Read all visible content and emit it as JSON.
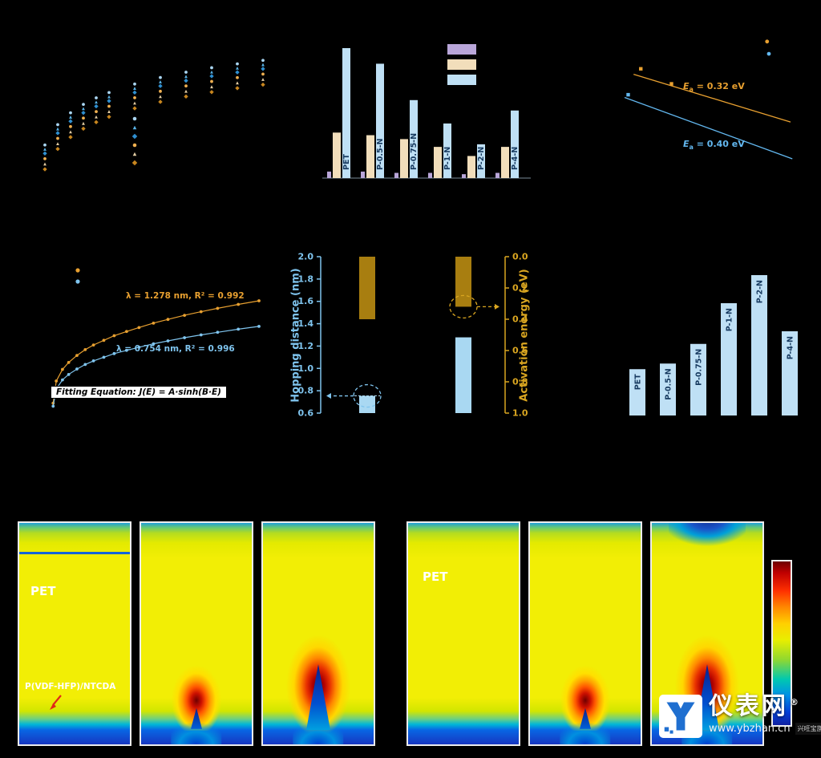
{
  "page": {
    "background": "#000000"
  },
  "chart_data": [
    {
      "id": "je-family-curves",
      "type": "scatter",
      "title": "",
      "x": [
        1,
        2,
        3,
        4,
        5,
        6,
        8,
        10,
        12,
        14,
        16,
        18
      ],
      "growth": [
        0,
        0.24,
        0.38,
        0.48,
        0.557,
        0.62,
        0.72,
        0.797,
        0.86,
        0.913,
        0.959,
        1.0
      ],
      "amplitude": 8,
      "series": [
        {
          "name": "series-1",
          "color": "#aad6f2",
          "offset": 2.6,
          "marker": "c"
        },
        {
          "name": "series-2",
          "color": "#5ab4e8",
          "offset": 2.2,
          "marker": "t"
        },
        {
          "name": "series-3",
          "color": "#2e8fd0",
          "offset": 1.8,
          "marker": "d"
        },
        {
          "name": "series-4",
          "color": "#f0b050",
          "offset": 1.3,
          "marker": "c"
        },
        {
          "name": "series-5",
          "color": "#e3cda4",
          "offset": 0.8,
          "marker": "t"
        },
        {
          "name": "series-6",
          "color": "#c8861e",
          "offset": 0.3,
          "marker": "d"
        }
      ]
    },
    {
      "id": "grouped-bars",
      "type": "bar",
      "categories": [
        "PET",
        "P-0.5-N",
        "P-0.75-N",
        "P-1-N",
        "P-2-N",
        "P-4-N"
      ],
      "series": [
        {
          "name": "series-purple",
          "color": "#b9a6d9",
          "values": [
            5,
            5,
            4,
            4,
            3,
            4
          ]
        },
        {
          "name": "series-cream",
          "color": "#f2debb",
          "values": [
            35,
            33,
            30,
            24,
            17,
            24
          ]
        },
        {
          "name": "series-lightblue",
          "color": "#bfe0f5",
          "values": [
            100,
            88,
            60,
            42,
            26,
            52
          ]
        }
      ],
      "ymax": 105,
      "label_color": "#16395f"
    },
    {
      "id": "arrhenius",
      "type": "scatter",
      "series": [
        {
          "name": "upper",
          "color": "#e8a030",
          "ann_sym": "E",
          "ann_sub": "a",
          "ann_rest": " = 0.32 eV",
          "line": [
            [
              0.09,
              0.72
            ],
            [
              0.96,
              0.37
            ]
          ],
          "points": [
            [
              0.13,
              0.76
            ],
            [
              0.3,
              0.65
            ]
          ]
        },
        {
          "name": "lower",
          "color": "#63b8f0",
          "ann_sym": "E",
          "ann_sub": "a",
          "ann_rest": " = 0.40 eV",
          "line": [
            [
              0.04,
              0.55
            ],
            [
              0.97,
              0.1
            ]
          ],
          "points": [
            [
              0.06,
              0.57
            ]
          ]
        }
      ],
      "legend_points": [
        {
          "color": "#e8a030",
          "x": 0.83,
          "y": 0.96
        },
        {
          "color": "#63b8f0",
          "x": 0.84,
          "y": 0.87
        }
      ]
    },
    {
      "id": "sinh-fit",
      "type": "scatter",
      "t": [
        0.005,
        0.02,
        0.05,
        0.08,
        0.12,
        0.16,
        0.2,
        0.25,
        0.3,
        0.36,
        0.42,
        0.49,
        0.56,
        0.64,
        0.72,
        0.8,
        0.9,
        1.0
      ],
      "growth": [
        0.12,
        0.31,
        0.41,
        0.47,
        0.53,
        0.58,
        0.62,
        0.66,
        0.7,
        0.736,
        0.77,
        0.808,
        0.84,
        0.875,
        0.906,
        0.935,
        0.969,
        1.0
      ],
      "series": [
        {
          "name": "upper",
          "color": "#e8a030",
          "scale": 1.0,
          "annotation": "λ = 1.278 nm, R² = 0.992"
        },
        {
          "name": "lower",
          "color": "#7fc4ee",
          "scale": 0.78,
          "annotation": "λ = 0.754 nm, R² = 0.996"
        }
      ],
      "equation": "Fitting Equation: J(E) = A·sinh(B·E)"
    },
    {
      "id": "hopping-activation",
      "type": "bar",
      "left_axis": {
        "label": "Hopping distance (nm)",
        "color": "#7fc4ee",
        "min": 0.6,
        "max": 2.0,
        "ticks": [
          2.0,
          1.8,
          1.6,
          1.4,
          1.2,
          1.0,
          0.8,
          0.6
        ]
      },
      "right_axis": {
        "label": "Activation energy (eV)",
        "color": "#d9a520",
        "min": 0.0,
        "max": 1.0,
        "inverted": true,
        "ticks": [
          0.0,
          0.2,
          0.4,
          0.6,
          0.8,
          1.0
        ]
      },
      "groups": [
        {
          "hopping_nm": 0.754,
          "activation_eV": 0.4
        },
        {
          "hopping_nm": 1.278,
          "activation_eV": 0.32
        }
      ],
      "bar_colors": {
        "hopping": "#a9d8f2",
        "activation": "#a87e10"
      }
    },
    {
      "id": "sample-bar-chart",
      "type": "bar",
      "categories": [
        "PET",
        "P-0.5-N",
        "P-0.75-N",
        "P-1-N",
        "P-2-N",
        "P-4-N"
      ],
      "values": [
        33,
        37,
        51,
        80,
        100,
        60
      ],
      "bar_color": "#bfe0f5",
      "label_color": "#16395f"
    }
  ],
  "simulation": {
    "groups": [
      {
        "panels": [
          {
            "label": "PET",
            "film_label": "P(VDF-HFP)/NTCDA",
            "hotspot": "none"
          },
          {
            "hotspot": "small"
          },
          {
            "hotspot": "large"
          }
        ]
      },
      {
        "panels": [
          {
            "label": "PET",
            "hotspot": "none"
          },
          {
            "hotspot": "small"
          },
          {
            "hotspot": "large"
          }
        ]
      }
    ],
    "colorbar_colors": [
      "#6e0000",
      "#ff3000",
      "#ffd000",
      "#e8ee00",
      "#90d830",
      "#00c8b0",
      "#0090e8",
      "#1020a0"
    ]
  },
  "watermark": {
    "brand": "仪表网",
    "reg": "®",
    "url": "www.ybzhan.cn",
    "tagline": "兴旺宝旗下网站",
    "accent": "#1f6fd0"
  }
}
